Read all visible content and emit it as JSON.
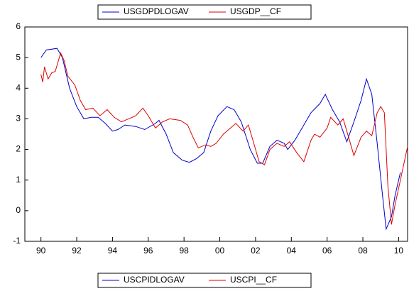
{
  "chart_data": {
    "type": "line",
    "series": [
      {
        "name": "USGDPDLOGAV",
        "color": "#0000cc",
        "x": [
          1990.0,
          1990.3,
          1990.9,
          1991.2,
          1991.6,
          1992.0,
          1992.4,
          1992.8,
          1993.2,
          1993.6,
          1994.0,
          1994.3,
          1994.7,
          1995.3,
          1995.8,
          1996.4,
          1996.6,
          1997.0,
          1997.4,
          1997.9,
          1998.3,
          1998.7,
          1999.1,
          1999.5,
          1999.9,
          2000.4,
          2000.8,
          2001.2,
          2001.7,
          2002.1,
          2002.4,
          2002.8,
          2003.2,
          2003.6,
          2003.8,
          2004.2,
          2004.7,
          2005.1,
          2005.6,
          2005.9,
          2006.3,
          2006.7,
          2007.1,
          2007.5,
          2007.9,
          2008.2,
          2008.5,
          2008.8,
          2009.1,
          2009.3,
          2009.6,
          2009.8,
          2010.1
        ],
        "values": [
          5.0,
          5.25,
          5.3,
          5.0,
          4.0,
          3.4,
          3.0,
          3.05,
          3.05,
          2.85,
          2.6,
          2.65,
          2.8,
          2.75,
          2.65,
          2.85,
          2.95,
          2.5,
          1.9,
          1.65,
          1.58,
          1.7,
          1.9,
          2.6,
          3.1,
          3.4,
          3.3,
          2.9,
          2.0,
          1.55,
          1.55,
          2.1,
          2.3,
          2.2,
          2.0,
          2.3,
          2.8,
          3.2,
          3.5,
          3.8,
          3.3,
          2.9,
          2.25,
          2.9,
          3.6,
          4.3,
          3.8,
          2.2,
          0.5,
          -0.6,
          -0.2,
          0.5,
          1.25
        ]
      },
      {
        "name": "USGDP__CF",
        "color": "#dd0000",
        "x": [
          1990.0,
          1990.1,
          1990.2,
          1990.4,
          1990.6,
          1990.8,
          1991.1,
          1991.3,
          1991.5,
          1991.9,
          1992.2,
          1992.5,
          1992.9,
          1993.3,
          1993.7,
          1994.1,
          1994.5,
          1994.9,
          1995.3,
          1995.7,
          1996.0,
          1996.4,
          1996.8,
          1997.2,
          1997.8,
          1998.2,
          1998.5,
          1998.8,
          1999.2,
          1999.5,
          1999.8,
          2000.2,
          2000.6,
          2000.9,
          2001.3,
          2001.6,
          2001.9,
          2002.2,
          2002.5,
          2002.8,
          2003.2,
          2003.6,
          2003.9,
          2004.3,
          2004.7,
          2005.1,
          2005.3,
          2005.6,
          2006.0,
          2006.2,
          2006.6,
          2006.9,
          2007.2,
          2007.5,
          2007.9,
          2008.2,
          2008.5,
          2008.8,
          2009.0,
          2009.2,
          2009.4,
          2009.6,
          2009.8,
          2010.1,
          2010.5
        ],
        "values": [
          4.45,
          4.2,
          4.7,
          4.3,
          4.5,
          4.55,
          5.15,
          4.9,
          4.4,
          4.1,
          3.6,
          3.3,
          3.35,
          3.1,
          3.3,
          3.05,
          2.9,
          3.0,
          3.1,
          3.35,
          3.1,
          2.7,
          2.9,
          3.0,
          2.95,
          2.8,
          2.4,
          2.05,
          2.15,
          2.1,
          2.2,
          2.5,
          2.7,
          2.85,
          2.6,
          2.8,
          2.2,
          1.6,
          1.5,
          2.0,
          2.2,
          2.1,
          2.25,
          1.9,
          1.6,
          2.3,
          2.5,
          2.4,
          2.7,
          3.05,
          2.8,
          3.0,
          2.4,
          1.8,
          2.4,
          2.6,
          2.45,
          3.2,
          3.4,
          3.2,
          0.8,
          -0.45,
          0.2,
          1.0,
          2.1
        ]
      }
    ],
    "lower_legend": [
      {
        "name": "USCPIDLOGAV",
        "color": "#0000cc"
      },
      {
        "name": "USCPI__CF",
        "color": "#dd0000"
      }
    ],
    "xlim": [
      1989.1,
      2010.5
    ],
    "xticks": [
      {
        "value": 1990,
        "label": "90"
      },
      {
        "value": 1992,
        "label": "92"
      },
      {
        "value": 1994,
        "label": "94"
      },
      {
        "value": 1996,
        "label": "96"
      },
      {
        "value": 1998,
        "label": "98"
      },
      {
        "value": 2000,
        "label": "00"
      },
      {
        "value": 2002,
        "label": "02"
      },
      {
        "value": 2004,
        "label": "04"
      },
      {
        "value": 2006,
        "label": "06"
      },
      {
        "value": 2008,
        "label": "08"
      },
      {
        "value": 2010,
        "label": "10"
      }
    ],
    "ylim": [
      -1,
      6
    ],
    "yticks": [
      -1,
      0,
      1,
      2,
      3,
      4,
      5,
      6
    ]
  }
}
